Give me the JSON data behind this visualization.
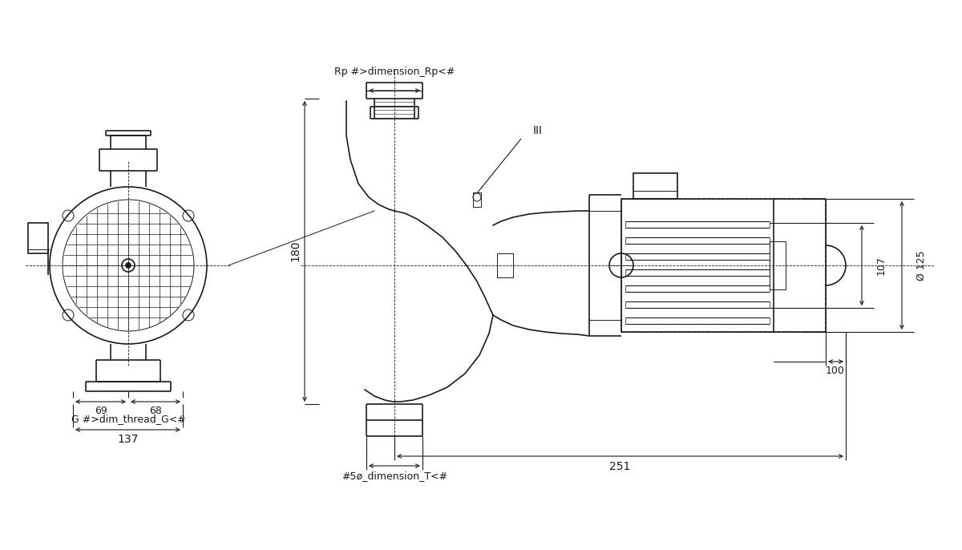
{
  "bg_color": "#ffffff",
  "line_color": "#1a1a1a",
  "text_color": "#1a1a1a",
  "annotations": {
    "rp_label": "Rp #>dimension_Rp<#",
    "g_label": "G #>dim_thread_G<#",
    "dim_T_label": "#5ø_dimension_T<#",
    "dim_180": "180",
    "dim_69": "69",
    "dim_68": "68",
    "dim_137": "137",
    "dim_251": "251",
    "dim_100": "100",
    "dim_107": "107",
    "dim_125": "Ø 125",
    "dim_III": "III"
  },
  "figsize": [
    12.0,
    6.86
  ],
  "dpi": 100
}
